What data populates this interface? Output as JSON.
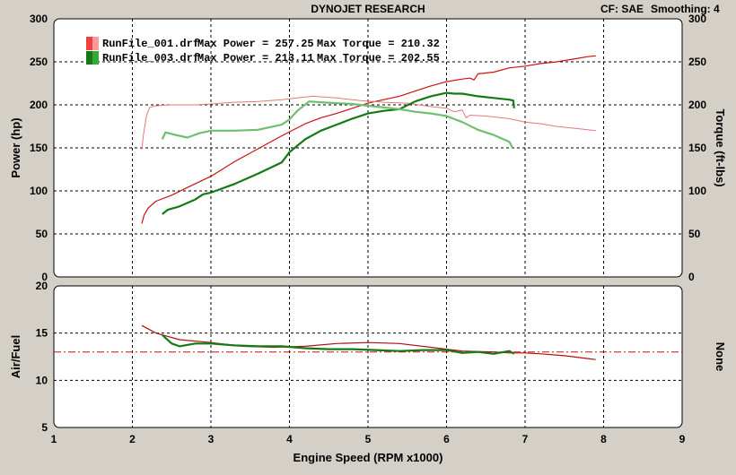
{
  "header": {
    "title": "DYNOJET RESEARCH",
    "cf_label": "CF: SAE",
    "smoothing_label": "Smoothing: 4"
  },
  "colors": {
    "run1_power": "#cc1111",
    "run1_torque": "#e07a7a",
    "run1_af": "#b01010",
    "run2_power": "#157a15",
    "run2_torque": "#6fbf6f",
    "run2_af": "#157a15",
    "target_af": "#cc1111",
    "panel_bg": "#ffffff",
    "window_bg": "#d4d0c8"
  },
  "legend": [
    {
      "name": "RunFile_001.drf",
      "power_text": "Max Power = 257.25",
      "torque_text": "Max Torque = 210.32",
      "swatch_a": "#f04040",
      "swatch_b": "#ff9a9a"
    },
    {
      "name": "RunFile_003.drf",
      "power_text": "Max Power = 213.11",
      "torque_text": "Max Torque = 202.55",
      "swatch_a": "#157a15",
      "swatch_b": "#33aa33"
    }
  ],
  "chart_data": [
    {
      "type": "line",
      "panel": "power_torque",
      "xlim": [
        1,
        9
      ],
      "ylim": [
        0,
        300
      ],
      "y2lim": [
        0,
        300
      ],
      "y_ticks": [
        0,
        50,
        100,
        150,
        200,
        250,
        300
      ],
      "y2_ticks": [
        0,
        50,
        100,
        150,
        200,
        250,
        300
      ],
      "ylabel": "Power (hp)",
      "y2label": "Torque (ft-lbs)",
      "grid": true,
      "series": [
        {
          "axis": "left",
          "color": "#cc1111",
          "width": 1.2,
          "x": [
            2.12,
            2.15,
            2.2,
            2.3,
            2.5,
            2.7,
            3.0,
            3.3,
            3.6,
            3.9,
            4.2,
            4.4,
            4.6,
            4.8,
            5.0,
            5.2,
            5.4,
            5.6,
            5.8,
            6.0,
            6.2,
            6.3,
            6.35,
            6.4,
            6.6,
            6.8,
            7.0,
            7.2,
            7.4,
            7.6,
            7.8,
            7.9
          ],
          "y": [
            62,
            72,
            80,
            88,
            95,
            104,
            117,
            134,
            149,
            164,
            178,
            185,
            190,
            196,
            202,
            206,
            210,
            216,
            222,
            227,
            230,
            231,
            229,
            236,
            238,
            243,
            245,
            248,
            250,
            253,
            256,
            257
          ]
        },
        {
          "axis": "right",
          "color": "#e07a7a",
          "width": 1.0,
          "x": [
            2.12,
            2.14,
            2.18,
            2.22,
            2.3,
            2.5,
            2.8,
            3.0,
            3.3,
            3.6,
            3.9,
            4.1,
            4.3,
            4.6,
            4.9,
            5.2,
            5.5,
            5.8,
            6.0,
            6.1,
            6.2,
            6.25,
            6.3,
            6.5,
            6.8,
            7.0,
            7.2,
            7.4,
            7.6,
            7.9
          ],
          "y": [
            148,
            165,
            188,
            197,
            199,
            200,
            200,
            201,
            203,
            204,
            206,
            208,
            210,
            208,
            205,
            203,
            202,
            198,
            196,
            192,
            194,
            185,
            188,
            187,
            184,
            180,
            178,
            175,
            173,
            170
          ]
        },
        {
          "axis": "left",
          "color": "#157a15",
          "width": 2.2,
          "x": [
            2.38,
            2.45,
            2.6,
            2.8,
            2.9,
            3.0,
            3.3,
            3.6,
            3.9,
            4.0,
            4.2,
            4.4,
            4.6,
            4.8,
            5.0,
            5.2,
            5.4,
            5.6,
            5.8,
            6.0,
            6.1,
            6.2,
            6.4,
            6.6,
            6.8,
            6.85,
            6.86
          ],
          "y": [
            73,
            78,
            82,
            90,
            96,
            98,
            108,
            120,
            133,
            145,
            160,
            170,
            177,
            184,
            190,
            193,
            195,
            204,
            210,
            214,
            213,
            213,
            210,
            208,
            206,
            205,
            196
          ]
        },
        {
          "axis": "right",
          "color": "#6fbf6f",
          "width": 2.2,
          "x": [
            2.38,
            2.42,
            2.55,
            2.7,
            2.85,
            3.0,
            3.3,
            3.6,
            3.9,
            4.0,
            4.1,
            4.25,
            4.4,
            4.6,
            4.8,
            5.0,
            5.2,
            5.4,
            5.6,
            5.8,
            6.0,
            6.2,
            6.4,
            6.6,
            6.8,
            6.84
          ],
          "y": [
            160,
            168,
            165,
            162,
            167,
            170,
            170,
            171,
            177,
            183,
            193,
            204,
            203,
            202,
            201,
            199,
            197,
            195,
            192,
            190,
            187,
            180,
            171,
            165,
            157,
            150
          ]
        }
      ]
    },
    {
      "type": "line",
      "panel": "air_fuel",
      "xlim": [
        1,
        9
      ],
      "ylim": [
        5,
        20
      ],
      "y_ticks": [
        5,
        10,
        15,
        20
      ],
      "x_ticks": [
        1,
        2,
        3,
        4,
        5,
        6,
        7,
        8,
        9
      ],
      "ylabel": "Air/Fuel",
      "y2label": "None",
      "xlabel": "Engine Speed (RPM x1000)",
      "grid": true,
      "target_af": 13.0,
      "series": [
        {
          "color": "#b01010",
          "width": 1.2,
          "x": [
            2.12,
            2.3,
            2.6,
            3.0,
            3.4,
            3.8,
            4.2,
            4.6,
            5.0,
            5.4,
            5.8,
            6.2,
            6.6,
            6.8,
            7.0,
            7.2,
            7.5,
            7.8,
            7.9
          ],
          "y": [
            15.8,
            15.0,
            14.3,
            14.0,
            13.6,
            13.5,
            13.6,
            13.9,
            14.0,
            13.9,
            13.5,
            13.1,
            13.0,
            12.9,
            12.9,
            12.8,
            12.6,
            12.3,
            12.2
          ]
        },
        {
          "color": "#157a15",
          "width": 2.2,
          "x": [
            2.38,
            2.5,
            2.6,
            2.8,
            3.0,
            3.3,
            3.6,
            3.9,
            4.2,
            4.5,
            4.8,
            5.1,
            5.4,
            5.7,
            6.0,
            6.2,
            6.4,
            6.6,
            6.8,
            6.86
          ],
          "y": [
            14.8,
            13.9,
            13.6,
            13.9,
            13.9,
            13.7,
            13.6,
            13.6,
            13.4,
            13.3,
            13.3,
            13.2,
            13.1,
            13.2,
            13.2,
            12.9,
            13.0,
            12.8,
            13.1,
            12.8
          ]
        }
      ]
    }
  ]
}
